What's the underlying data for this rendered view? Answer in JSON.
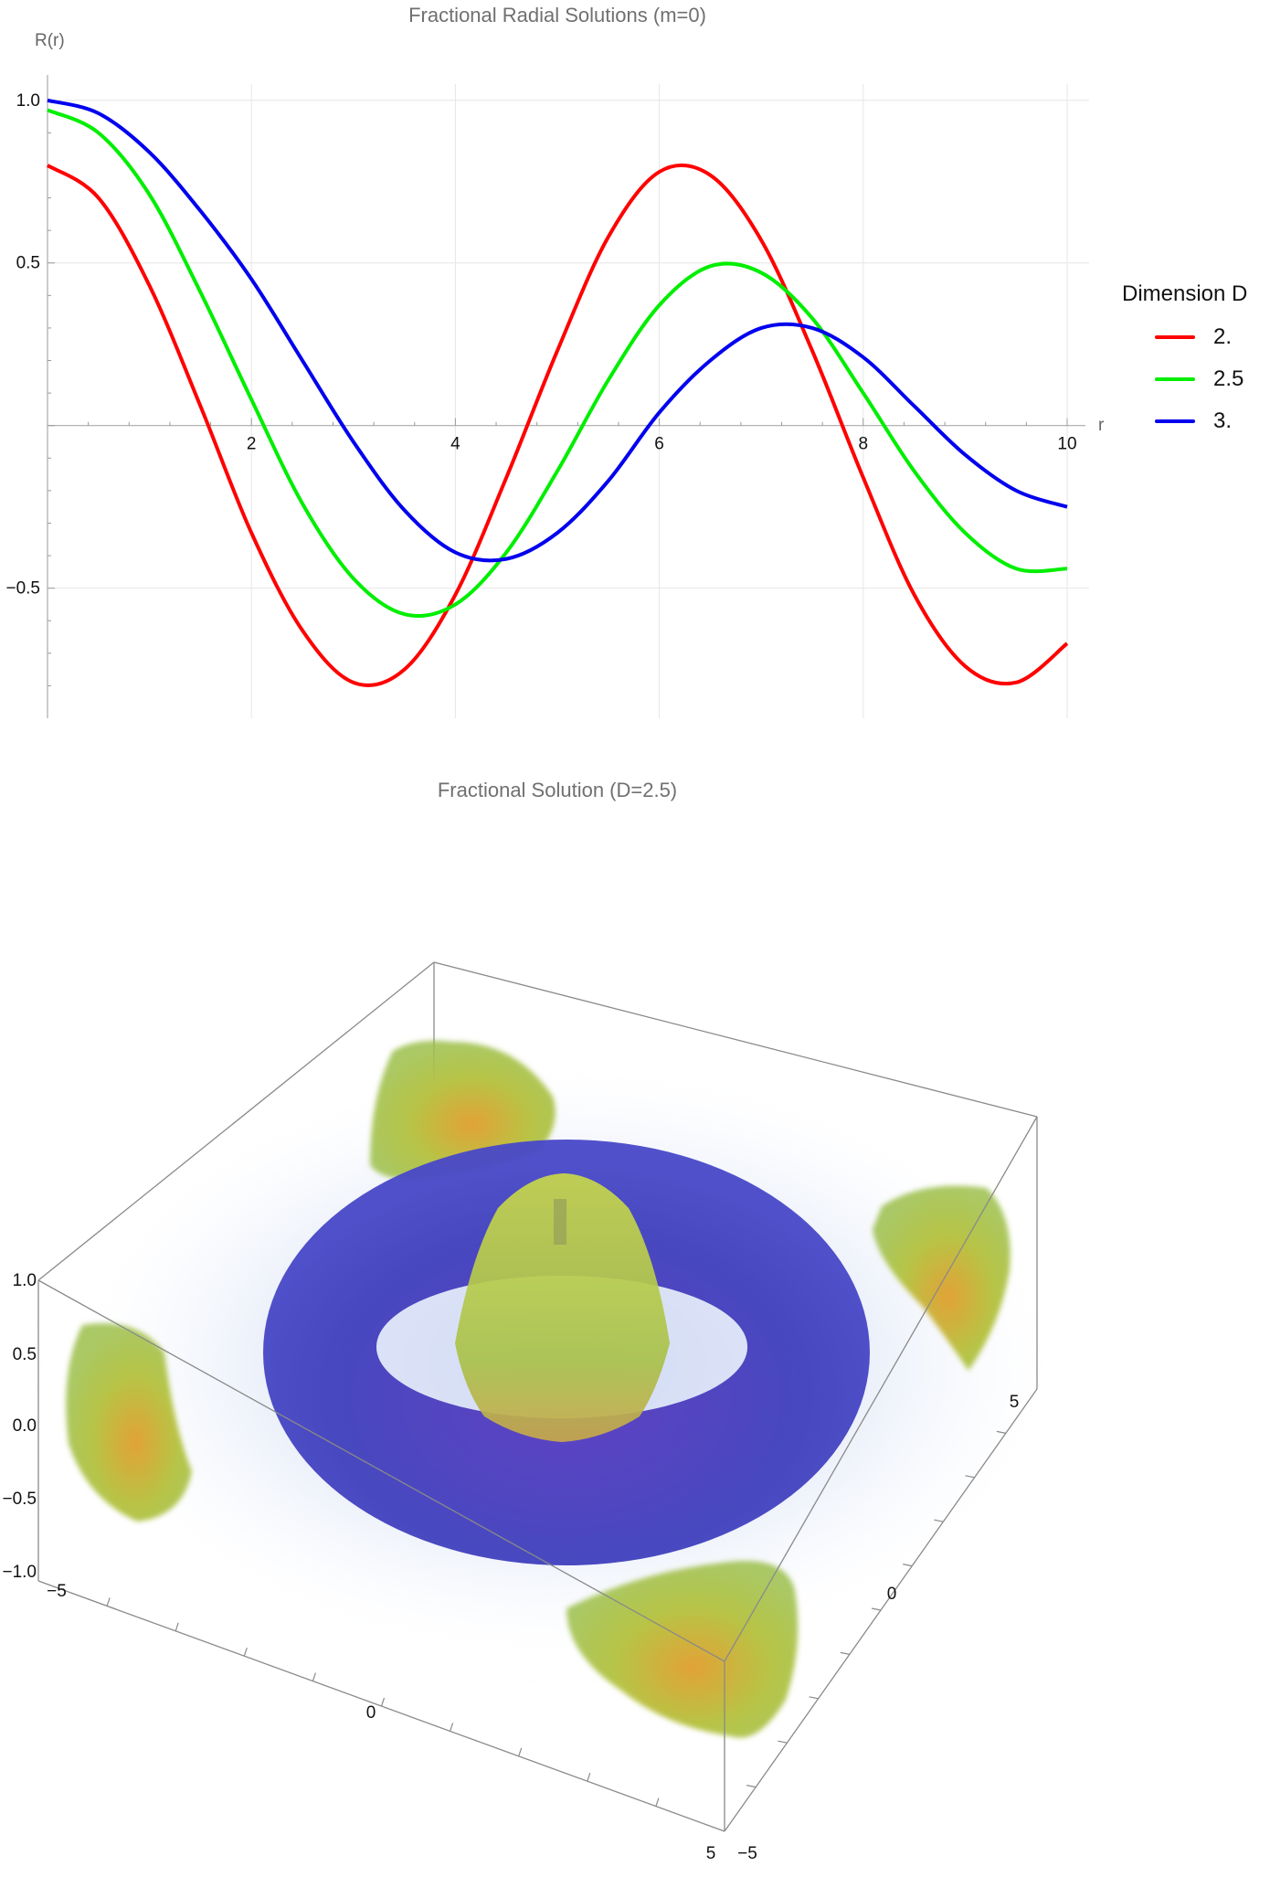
{
  "chart_data": [
    {
      "type": "line",
      "title": "Fractional Radial Solutions (m=0)",
      "xlabel": "r",
      "ylabel": "R(r)",
      "xlim": [
        0,
        10
      ],
      "ylim": [
        -0.9,
        1.05
      ],
      "x_ticks": [
        "2",
        "4",
        "6",
        "8",
        "10"
      ],
      "y_ticks": [
        "1.0",
        "0.5",
        "−0.5"
      ],
      "grid": true,
      "legend": {
        "title": "Dimension D",
        "position": "right"
      },
      "series": [
        {
          "name": "2.",
          "color": "#ff0000",
          "x": [
            0,
            0.5,
            1,
            1.5,
            2,
            2.5,
            3,
            3.5,
            4,
            4.5,
            5,
            5.5,
            6,
            6.5,
            7,
            7.5,
            8,
            8.5,
            9,
            9.5,
            10
          ],
          "y": [
            0.8,
            0.7,
            0.43,
            0.06,
            -0.33,
            -0.63,
            -0.79,
            -0.75,
            -0.52,
            -0.16,
            0.23,
            0.58,
            0.78,
            0.77,
            0.57,
            0.23,
            -0.16,
            -0.52,
            -0.74,
            -0.79,
            -0.67
          ]
        },
        {
          "name": "2.5",
          "color": "#00ee00",
          "x": [
            0,
            0.5,
            1,
            1.5,
            2,
            2.5,
            3,
            3.5,
            4,
            4.5,
            5,
            5.5,
            6,
            6.5,
            7,
            7.5,
            8,
            8.5,
            9,
            9.5,
            10
          ],
          "y": [
            0.97,
            0.9,
            0.71,
            0.41,
            0.08,
            -0.24,
            -0.47,
            -0.58,
            -0.55,
            -0.39,
            -0.14,
            0.14,
            0.37,
            0.49,
            0.47,
            0.33,
            0.1,
            -0.14,
            -0.33,
            -0.44,
            -0.44
          ]
        },
        {
          "name": "3.",
          "color": "#0000ee",
          "x": [
            0,
            0.5,
            1,
            1.5,
            2,
            2.5,
            3,
            3.5,
            4,
            4.5,
            5,
            5.5,
            6,
            6.5,
            7,
            7.5,
            8,
            8.5,
            9,
            9.5,
            10
          ],
          "y": [
            1.0,
            0.96,
            0.84,
            0.66,
            0.45,
            0.2,
            -0.05,
            -0.26,
            -0.39,
            -0.41,
            -0.33,
            -0.17,
            0.04,
            0.2,
            0.3,
            0.3,
            0.21,
            0.06,
            -0.09,
            -0.2,
            -0.25
          ]
        }
      ]
    },
    {
      "type": "volume-3d",
      "title": "Fractional Solution (D=2.5)",
      "z_ticks": [
        "1.0",
        "0.5",
        "0.0",
        "−0.5",
        "−1.0"
      ],
      "front_axis_ticks": [
        "−5",
        "0",
        "5"
      ],
      "right_axis_ticks": [
        "5",
        "0",
        "−5"
      ],
      "colors": {
        "torus": "#3a3ab8",
        "lobes": "#9bbf3c",
        "lobe_core": "#e0a032",
        "glow": "#c8d4f0"
      }
    }
  ]
}
